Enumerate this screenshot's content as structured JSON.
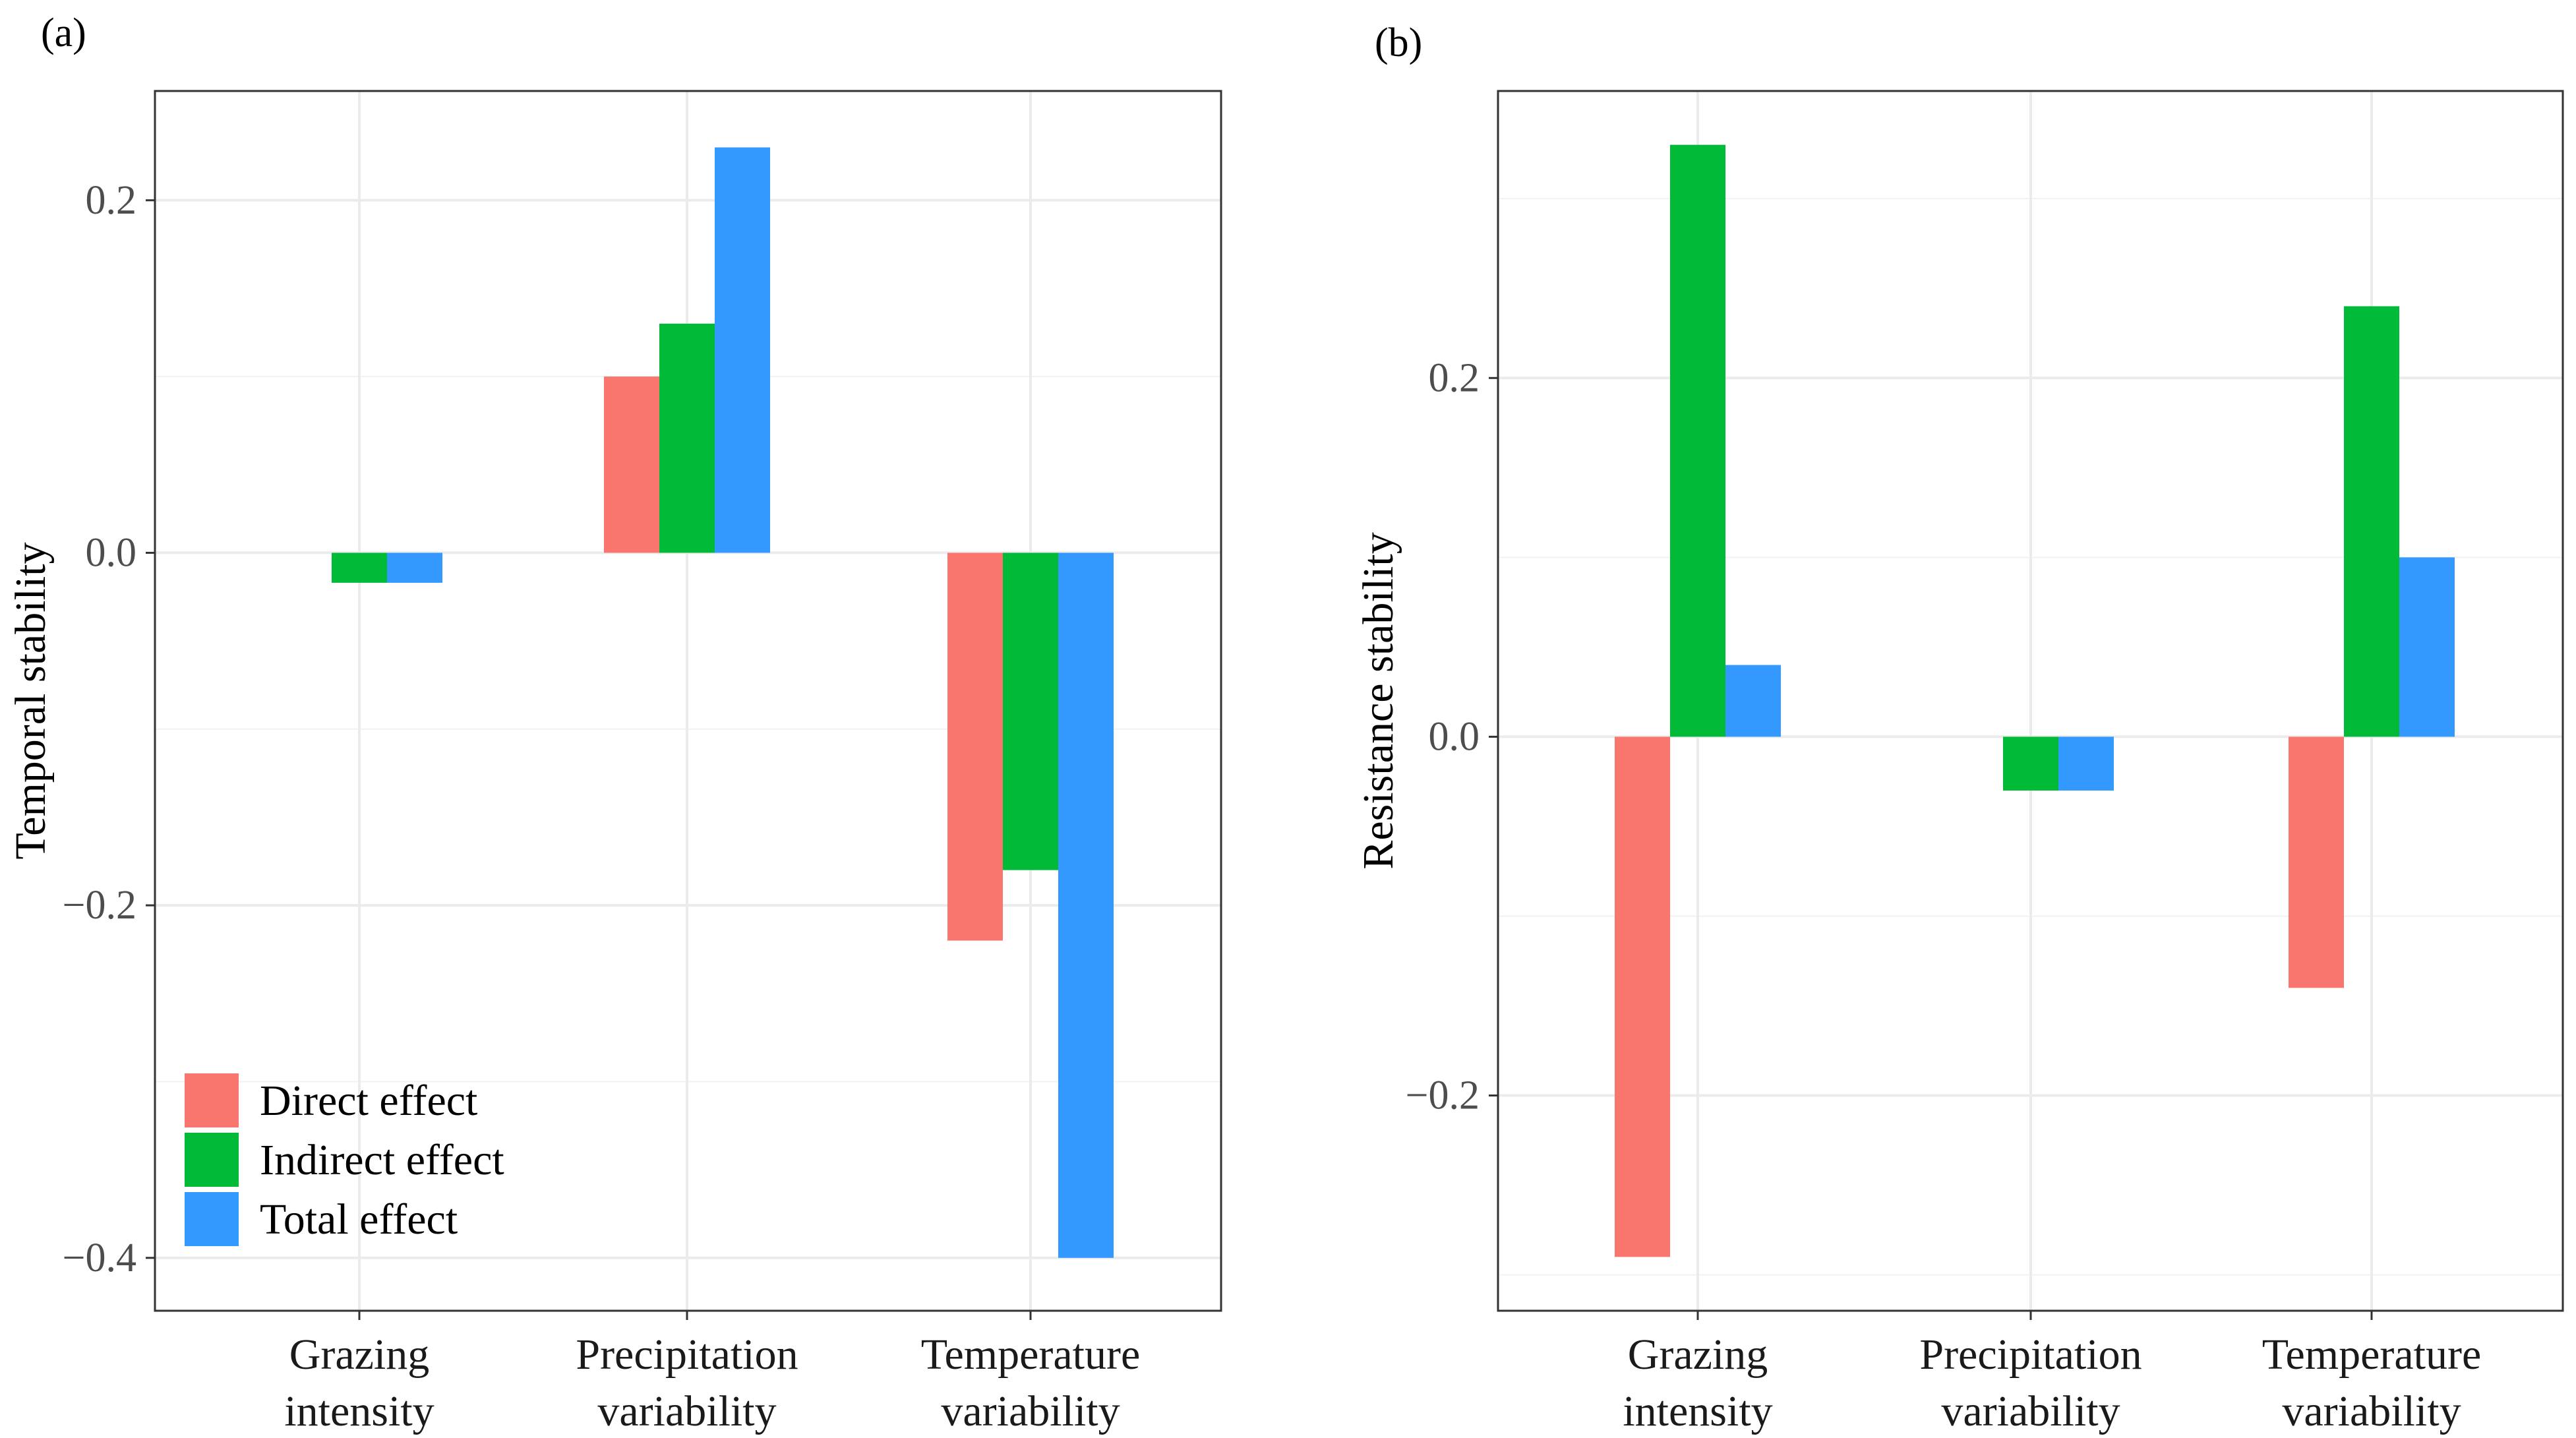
{
  "chart_data": [
    {
      "type": "bar",
      "panel_label": "(a)",
      "categories": [
        [
          "Grazing",
          "intensity"
        ],
        [
          "Precipitation",
          "variability"
        ],
        [
          "Temperature",
          "variability"
        ]
      ],
      "series": [
        {
          "name": "Direct effect",
          "color": "#F8766D",
          "values": [
            0,
            0.1,
            -0.22
          ]
        },
        {
          "name": "Indirect effect",
          "color": "#00BA38",
          "values": [
            -0.017,
            0.13,
            -0.18
          ]
        },
        {
          "name": "Total effect",
          "color": "#3399FF",
          "values": [
            -0.017,
            0.23,
            -0.4
          ]
        }
      ],
      "ylabel": "Temporal stability",
      "xlabel": "",
      "ylim": [
        -0.43,
        0.262
      ],
      "yticks": [
        0.2,
        0.0,
        -0.2,
        -0.4
      ],
      "ytick_labels": [
        "0.2",
        "0.0",
        "−0.2",
        "−0.4"
      ],
      "minor_gridlines": [
        0.1,
        -0.1,
        -0.3
      ],
      "grid": true,
      "legend": {
        "position": "bottom-left",
        "entries": [
          "Direct effect",
          "Indirect effect",
          "Total effect"
        ]
      }
    },
    {
      "type": "bar",
      "panel_label": "(b)",
      "categories": [
        [
          "Grazing",
          "intensity"
        ],
        [
          "Precipitation",
          "variability"
        ],
        [
          "Temperature",
          "variability"
        ]
      ],
      "series": [
        {
          "name": "Direct effect",
          "color": "#F8766D",
          "values": [
            -0.29,
            0,
            -0.14
          ]
        },
        {
          "name": "Indirect effect",
          "color": "#00BA38",
          "values": [
            0.33,
            -0.03,
            0.24
          ]
        },
        {
          "name": "Total effect",
          "color": "#3399FF",
          "values": [
            0.04,
            -0.03,
            0.1
          ]
        }
      ],
      "ylabel": "Resistance stability",
      "xlabel": "",
      "ylim": [
        -0.32,
        0.36
      ],
      "yticks": [
        0.2,
        0.0,
        -0.2
      ],
      "ytick_labels": [
        "0.2",
        "0.0",
        "−0.2"
      ],
      "minor_gridlines": [
        0.3,
        0.1,
        -0.1,
        -0.3
      ],
      "grid": true,
      "legend": null
    }
  ]
}
